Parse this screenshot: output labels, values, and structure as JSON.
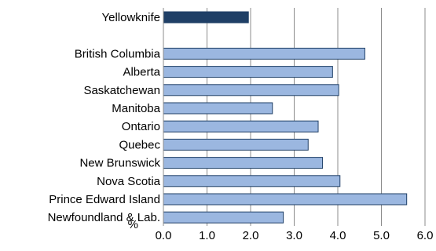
{
  "chart_data": {
    "type": "bar",
    "orientation": "horizontal",
    "title": "",
    "xlabel": "%",
    "ylabel": "",
    "xlim": [
      0,
      6
    ],
    "x_ticks": [
      "0.0",
      "1.0",
      "2.0",
      "3.0",
      "4.0",
      "5.0",
      "6.0"
    ],
    "grid": true,
    "categories": [
      "Yellowknife",
      "",
      "British Columbia",
      "Alberta",
      "Saskatchewan",
      "Manitoba",
      "Ontario",
      "Quebec",
      "New Brunswick",
      "Nova Scotia",
      "Prince Edward Island",
      "Newfoundland & Lab."
    ],
    "values": [
      1.95,
      null,
      4.62,
      3.88,
      4.02,
      2.5,
      3.55,
      3.32,
      3.65,
      4.05,
      5.58,
      2.75
    ],
    "colors": {
      "highlight": "#1f3f66",
      "default": "#9bb7e0",
      "border": "#1f3f66"
    }
  }
}
